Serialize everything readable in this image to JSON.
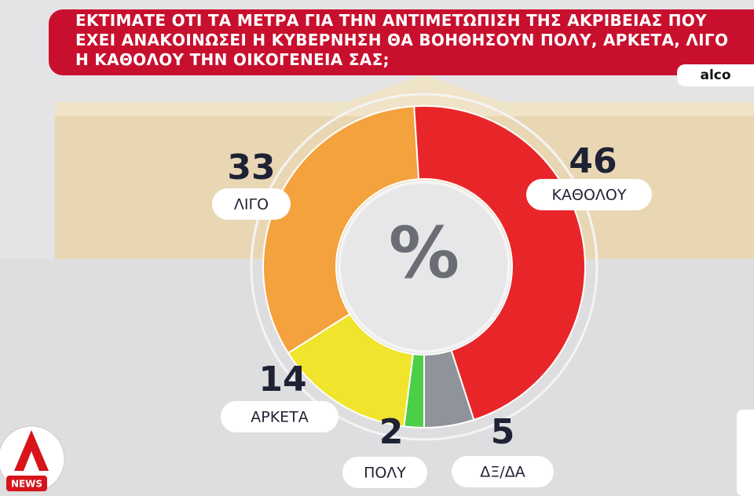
{
  "chart_data": {
    "type": "pie",
    "title": "ΕΚΤΙΜΑΤΕ ΟΤΙ ΤΑ ΜΕΤΡΑ ΓΙΑ ΤΗΝ ΑΝΤΙΜΕΤΩΠΙΣΗ ΤΗΣ ΑΚΡΙΒΕΙΑΣ ΠΟΥ ΕΧΕΙ ΑΝΑΚΟΙΝΩΣΕΙ Η ΚΥΒΕΡΝΗΣΗ ΘΑ ΒΟΗΘΗΣΟΥΝ ΠΟΛΥ, ΑΡΚΕΤΑ, ΛΙΓΟ Η ΚΑΘΟΛΟΥ ΤΗΝ ΟΙΚΟΓΕΝΕΙΑ ΣΑΣ;",
    "source": "alco",
    "center_label": "%",
    "logo": "NEWS",
    "categories": [
      "ΚΑΘΟΛΟΥ",
      "ΔΞ/ΔΑ",
      "ΠΟΛΥ",
      "ΑΡΚΕΤΑ",
      "ΛΙΓΟ"
    ],
    "values": [
      46,
      5,
      2,
      14,
      33
    ],
    "colors": [
      "#e8262a",
      "#8e9499",
      "#4ccf48",
      "#f0e42c",
      "#f3a23d"
    ]
  }
}
